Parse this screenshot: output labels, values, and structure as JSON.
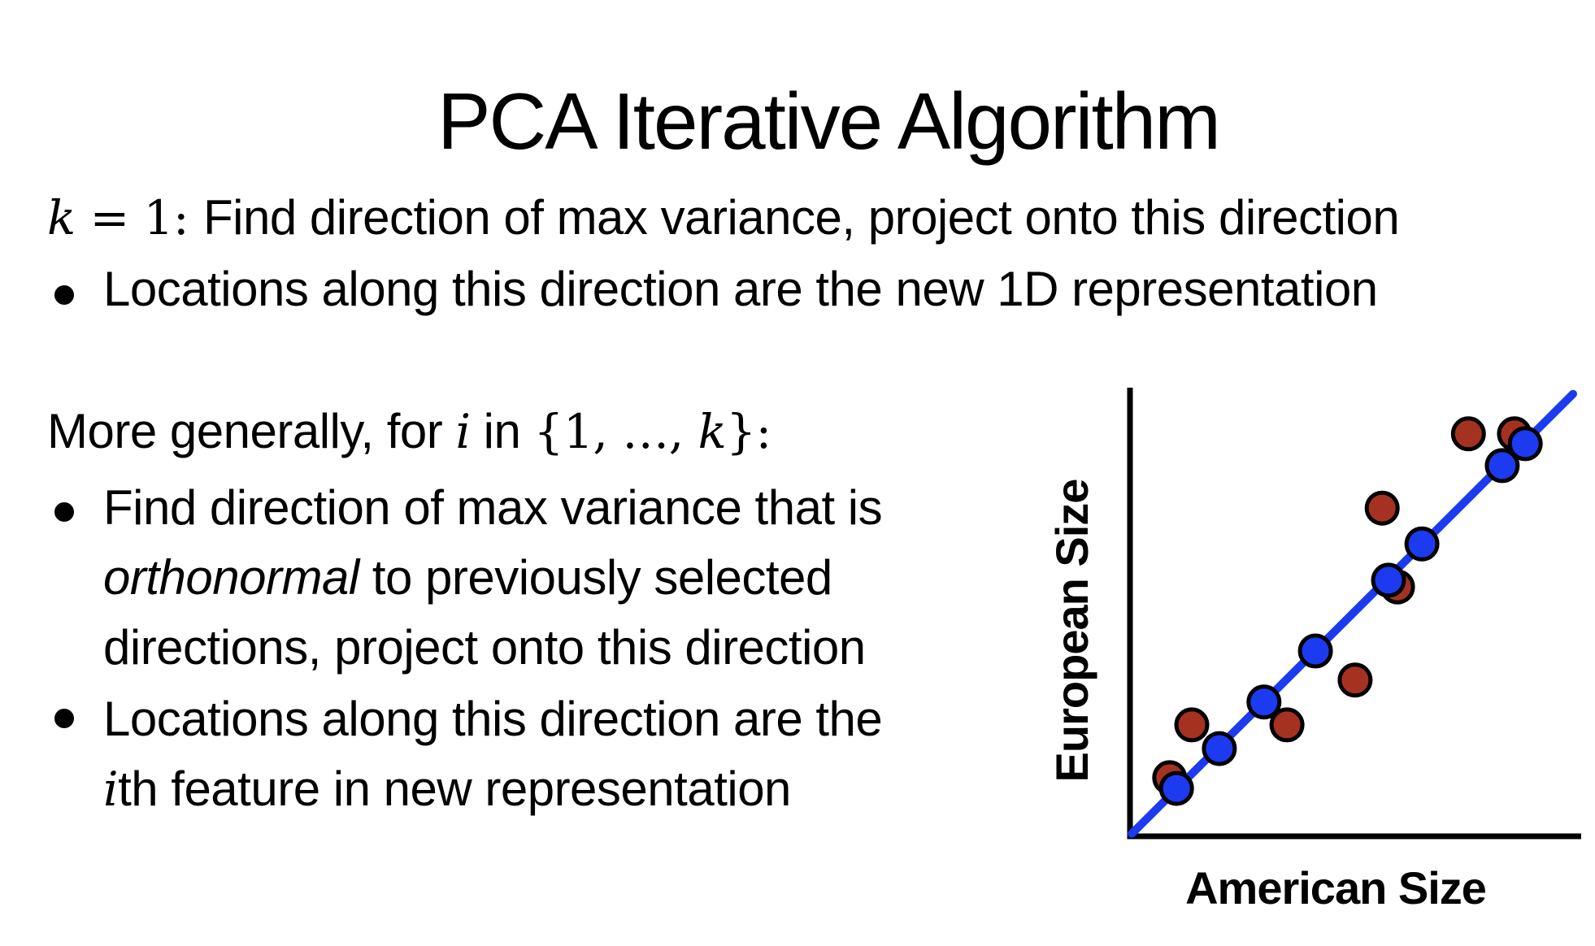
{
  "slide": {
    "title": "PCA Iterative Algorithm",
    "k_statement": {
      "k_var": "k",
      "k_rest": " = 1: ",
      "text": "Find direction of max variance, project onto this direction"
    },
    "bullet_new_rep": "Locations along this direction are the new 1D representation",
    "more_generally": {
      "lead": "More generally, for ",
      "i_var": "i",
      "mid": " in ",
      "set_open": "{1, …, ",
      "k_var": "k",
      "set_close": "}:"
    },
    "bullet_find": {
      "line1": "Find direction of max variance that is",
      "emph": "orthonormal",
      "line2": " to previously selected",
      "line3": "directions, project onto this direction"
    },
    "bullet_locations": {
      "line1": "Locations along this direction are the",
      "i_var": "i",
      "line2": "th feature in new representation"
    }
  },
  "chart_data": {
    "type": "scatter",
    "title": "",
    "xlabel": "American Size",
    "ylabel": "European Size",
    "axes": {
      "ticks": false,
      "x_range": [
        0,
        1
      ],
      "y_range": [
        0,
        1
      ]
    },
    "legend": "none",
    "projection_line": {
      "from": [
        0.004,
        0.004
      ],
      "to": [
        0.982,
        0.986
      ],
      "color": "#1C3BF0"
    },
    "series": [
      {
        "name": "red-points",
        "color": "#A53220",
        "points": [
          [
            0.088,
            0.129
          ],
          [
            0.137,
            0.247
          ],
          [
            0.348,
            0.247
          ],
          [
            0.499,
            0.347
          ],
          [
            0.559,
            0.731
          ],
          [
            0.593,
            0.555
          ],
          [
            0.75,
            0.897
          ],
          [
            0.852,
            0.897
          ]
        ]
      },
      {
        "name": "blue-points",
        "color": "#1C3BF0",
        "points": [
          [
            0.103,
            0.105
          ],
          [
            0.198,
            0.194
          ],
          [
            0.297,
            0.298
          ],
          [
            0.411,
            0.412
          ],
          [
            0.573,
            0.57
          ],
          [
            0.647,
            0.651
          ],
          [
            0.825,
            0.826
          ],
          [
            0.876,
            0.875
          ]
        ]
      }
    ],
    "style": {
      "dot_radius": 19,
      "dot_stroke_width": 5,
      "dot_stroke_color": "#000000",
      "line_width": 10,
      "axis_width": 7,
      "axis_color": "#000000"
    }
  }
}
